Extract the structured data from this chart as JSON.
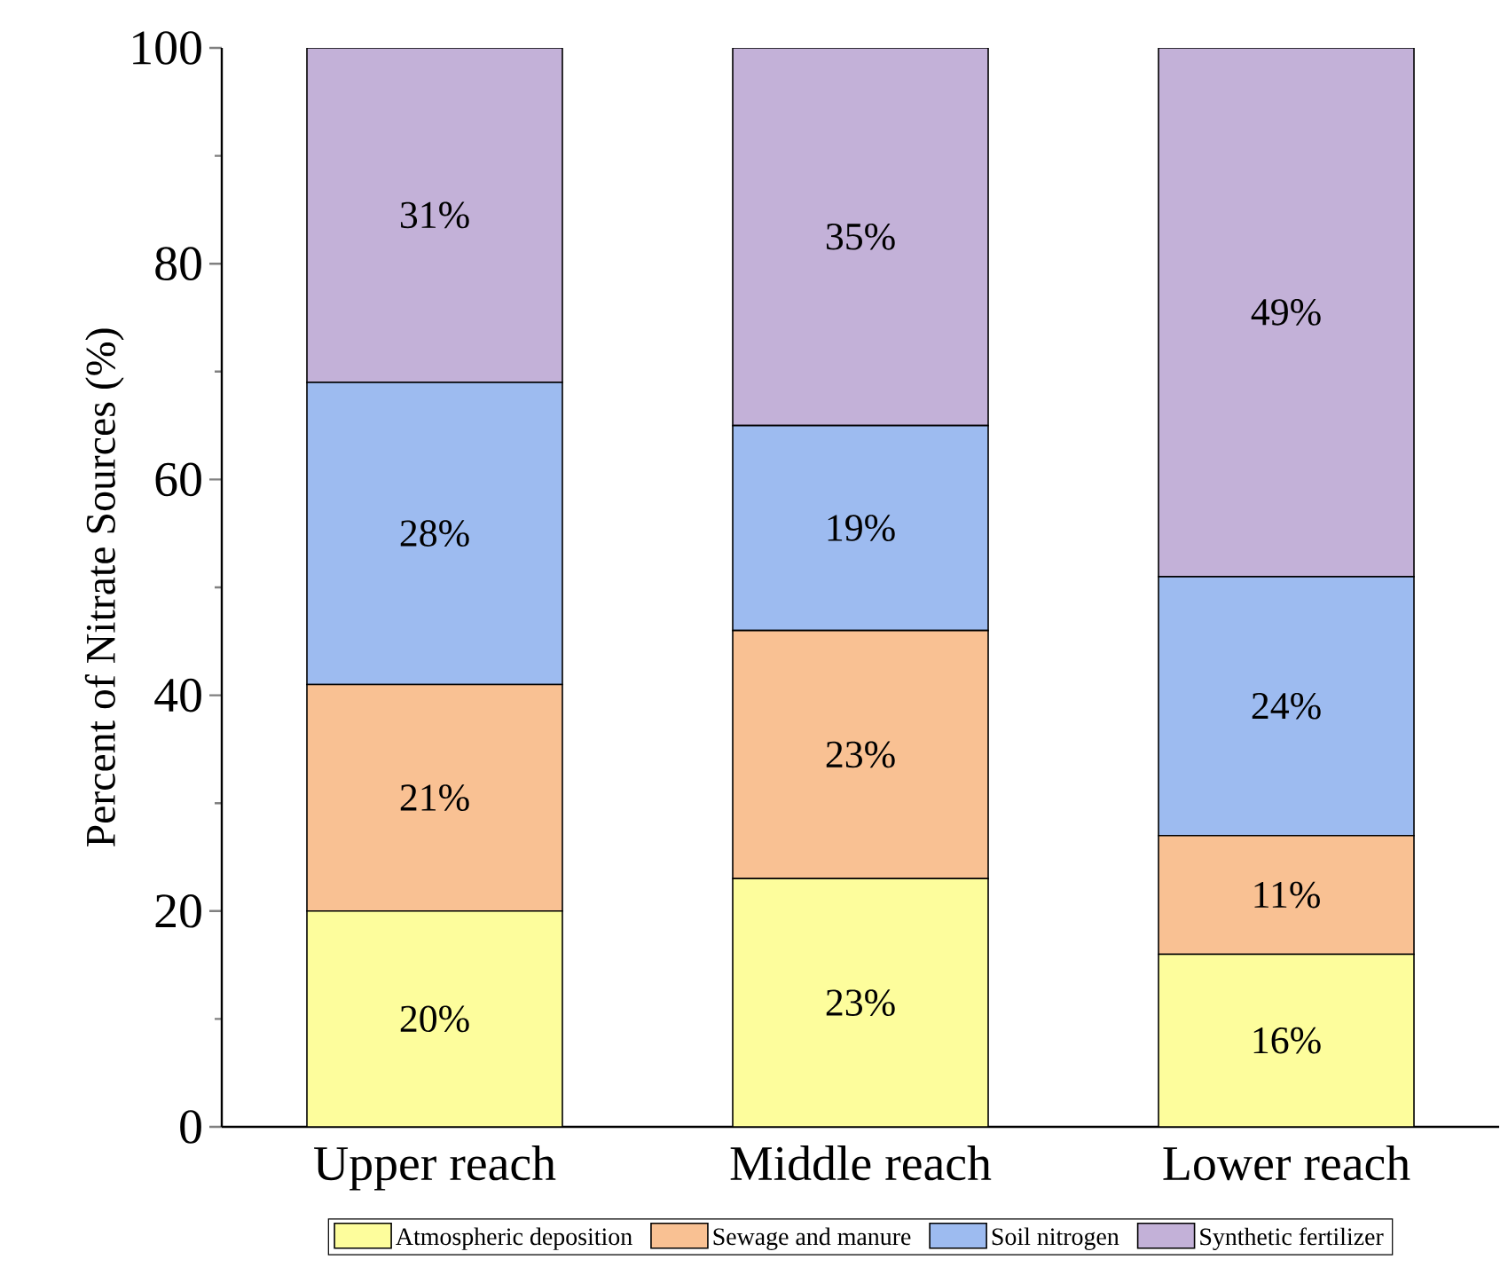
{
  "chart_data": {
    "type": "bar",
    "stacked": true,
    "ylabel": "Percent of Nitrate Sources (%)",
    "categories": [
      "Upper reach",
      "Middle reach",
      "Lower reach"
    ],
    "series": [
      {
        "name": "Atmospheric deposition",
        "color": "#fdfd9c",
        "values": [
          20,
          23,
          16
        ],
        "value_labels": [
          "20%",
          "23%",
          "16%"
        ]
      },
      {
        "name": "Sewage and manure",
        "color": "#f9c193",
        "values": [
          21,
          23,
          11
        ],
        "value_labels": [
          "21%",
          "23%",
          "11%"
        ]
      },
      {
        "name": "Soil nitrogen",
        "color": "#9dbbf0",
        "values": [
          28,
          19,
          24
        ],
        "value_labels": [
          "28%",
          "19%",
          "24%"
        ]
      },
      {
        "name": "Synthetic fertilizer",
        "color": "#c3b1d8",
        "values": [
          31,
          35,
          49
        ],
        "value_labels": [
          "31%",
          "35%",
          "49%"
        ]
      }
    ],
    "ylim": [
      0,
      100
    ],
    "yticks": [
      0,
      20,
      40,
      60,
      80,
      100
    ],
    "legend": "bottom",
    "grid": false
  }
}
